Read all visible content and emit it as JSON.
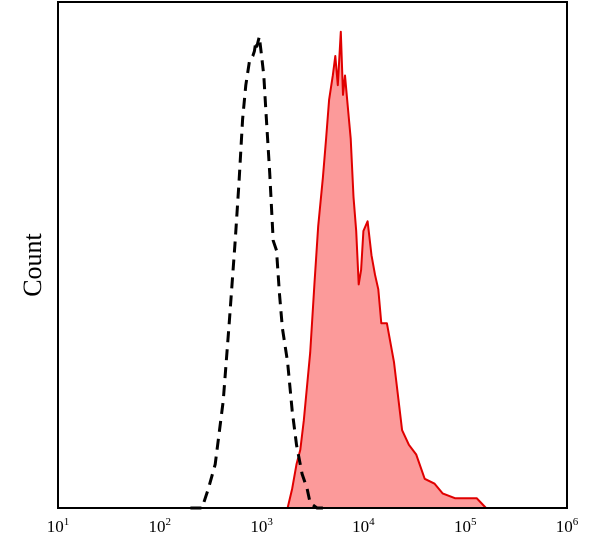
{
  "chart_data": {
    "type": "area",
    "title": "",
    "xlabel": "",
    "ylabel": "Count",
    "x_scale": "log10",
    "xlim": [
      10,
      1000000
    ],
    "ylim": [
      0,
      1
    ],
    "grid": false,
    "legend": "none",
    "x_ticks": [
      {
        "base": "10",
        "exp": "1",
        "value": 10
      },
      {
        "base": "10",
        "exp": "2",
        "value": 100
      },
      {
        "base": "10",
        "exp": "3",
        "value": 1000
      },
      {
        "base": "10",
        "exp": "4",
        "value": 10000
      },
      {
        "base": "10",
        "exp": "5",
        "value": 100000
      },
      {
        "base": "10",
        "exp": "6",
        "value": 1000000
      }
    ],
    "series": [
      {
        "style": "dashed",
        "color": "#000000",
        "fill": "none",
        "x": [
          200,
          260,
          300,
          350,
          420,
          480,
          550,
          600,
          650,
          700,
          760,
          820,
          850,
          880,
          900,
          950,
          1000,
          1050,
          1100,
          1200,
          1300,
          1400,
          1500,
          1600,
          1800,
          2000,
          2200,
          2500,
          2800,
          3000,
          3500,
          4000
        ],
        "y": [
          0.0,
          0.0,
          0.04,
          0.09,
          0.22,
          0.38,
          0.55,
          0.67,
          0.8,
          0.87,
          0.92,
          0.93,
          0.94,
          0.96,
          0.95,
          0.97,
          0.93,
          0.89,
          0.82,
          0.69,
          0.55,
          0.53,
          0.44,
          0.37,
          0.3,
          0.2,
          0.13,
          0.07,
          0.04,
          0.01,
          0.0,
          0.0
        ]
      },
      {
        "style": "solid",
        "color": "#e00000",
        "fill": "#fc9a9a",
        "x": [
          150,
          1800,
          2000,
          2200,
          2400,
          2600,
          3000,
          3300,
          3600,
          4000,
          4300,
          4600,
          5000,
          5300,
          5600,
          6000,
          6300,
          6600,
          7000,
          7500,
          8000,
          8500,
          9000,
          9500,
          10000,
          11000,
          12000,
          13000,
          14000,
          15000,
          17000,
          20000,
          24000,
          28000,
          33000,
          40000,
          50000,
          60000,
          80000,
          100000,
          130000,
          160000,
          200000
        ],
        "y": [
          0.0,
          0.0,
          0.04,
          0.09,
          0.12,
          0.18,
          0.32,
          0.46,
          0.58,
          0.68,
          0.76,
          0.84,
          0.89,
          0.93,
          0.87,
          0.98,
          0.85,
          0.89,
          0.83,
          0.76,
          0.64,
          0.57,
          0.46,
          0.49,
          0.57,
          0.59,
          0.52,
          0.48,
          0.45,
          0.38,
          0.38,
          0.3,
          0.16,
          0.13,
          0.11,
          0.06,
          0.05,
          0.03,
          0.02,
          0.02,
          0.02,
          0.0,
          0.0
        ]
      }
    ]
  }
}
